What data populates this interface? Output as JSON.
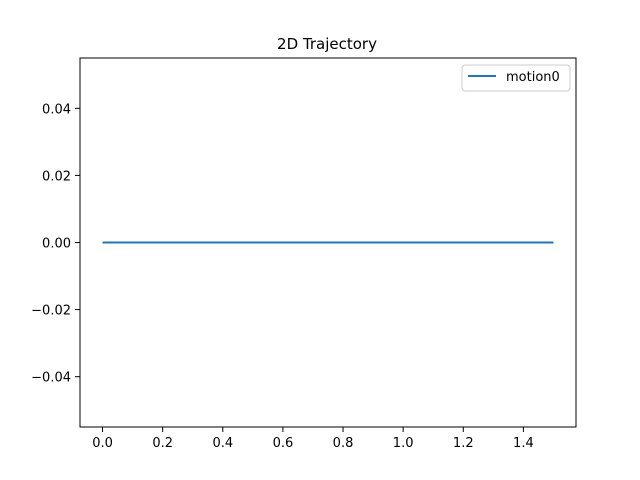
{
  "chart_data": {
    "type": "line",
    "title": "2D Trajectory",
    "xlabel": "",
    "ylabel": "",
    "xlim": [
      -0.075,
      1.575
    ],
    "ylim": [
      -0.055,
      0.055
    ],
    "xticks": [
      0.0,
      0.2,
      0.4,
      0.6,
      0.8,
      1.0,
      1.2,
      1.4
    ],
    "xtick_labels": [
      "0.0",
      "0.2",
      "0.4",
      "0.6",
      "0.8",
      "1.0",
      "1.2",
      "1.4"
    ],
    "yticks": [
      -0.04,
      -0.02,
      0.0,
      0.02,
      0.04
    ],
    "ytick_labels": [
      "−0.04",
      "−0.02",
      "0.00",
      "0.02",
      "0.04"
    ],
    "grid": false,
    "legend_position": "top-right",
    "series": [
      {
        "name": "motion0",
        "color": "#1f77b4",
        "x": [
          0.0,
          1.5
        ],
        "y": [
          0.0,
          0.0
        ]
      }
    ]
  }
}
